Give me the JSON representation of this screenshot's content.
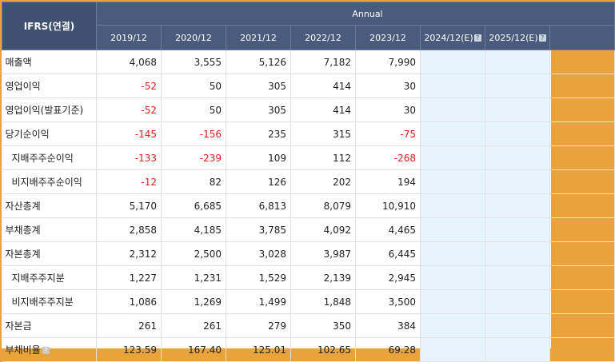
{
  "header": {
    "ifrs_label": "IFRS(연결)",
    "annual_label": "Annual",
    "periods": [
      "2019/12",
      "2020/12",
      "2021/12",
      "2022/12",
      "2023/12",
      "2024/12(E)",
      "2025/12(E)",
      ""
    ],
    "estimate_help_icon": "question-mark-icon"
  },
  "rows": [
    {
      "label": "매출액",
      "sub": false,
      "values": [
        "4,068",
        "3,555",
        "5,126",
        "7,182",
        "7,990"
      ]
    },
    {
      "label": "영업이익",
      "sub": false,
      "values": [
        "-52",
        "50",
        "305",
        "414",
        "30"
      ]
    },
    {
      "label": "영업이익(발표기준)",
      "sub": false,
      "values": [
        "-52",
        "50",
        "305",
        "414",
        "30"
      ]
    },
    {
      "label": "당기순이익",
      "sub": false,
      "values": [
        "-145",
        "-156",
        "235",
        "315",
        "-75"
      ]
    },
    {
      "label": "지배주주순이익",
      "sub": true,
      "values": [
        "-133",
        "-239",
        "109",
        "112",
        "-268"
      ]
    },
    {
      "label": "비지배주주순이익",
      "sub": true,
      "values": [
        "-12",
        "82",
        "126",
        "202",
        "194"
      ]
    },
    {
      "label": "자산총계",
      "sub": false,
      "values": [
        "5,170",
        "6,685",
        "6,813",
        "8,079",
        "10,910"
      ]
    },
    {
      "label": "부채총계",
      "sub": false,
      "values": [
        "2,858",
        "4,185",
        "3,785",
        "4,092",
        "4,465"
      ]
    },
    {
      "label": "자본총계",
      "sub": false,
      "values": [
        "2,312",
        "2,500",
        "3,028",
        "3,987",
        "6,445"
      ]
    },
    {
      "label": "지배주주지분",
      "sub": true,
      "values": [
        "1,227",
        "1,231",
        "1,529",
        "2,139",
        "2,945"
      ]
    },
    {
      "label": "비지배주주지분",
      "sub": true,
      "values": [
        "1,086",
        "1,269",
        "1,499",
        "1,848",
        "3,500"
      ]
    },
    {
      "label": "자본금",
      "sub": false,
      "values": [
        "261",
        "261",
        "279",
        "350",
        "384"
      ]
    },
    {
      "label": "부채비율",
      "sub": false,
      "help": true,
      "values": [
        "123.59",
        "167.40",
        "125.01",
        "102.65",
        "69.28"
      ]
    }
  ],
  "colors": {
    "header_bg": "#4a5c7d",
    "estimate_bg": "#e8f4fb",
    "negative": "#e02020",
    "window_border": "#e8a33a"
  }
}
